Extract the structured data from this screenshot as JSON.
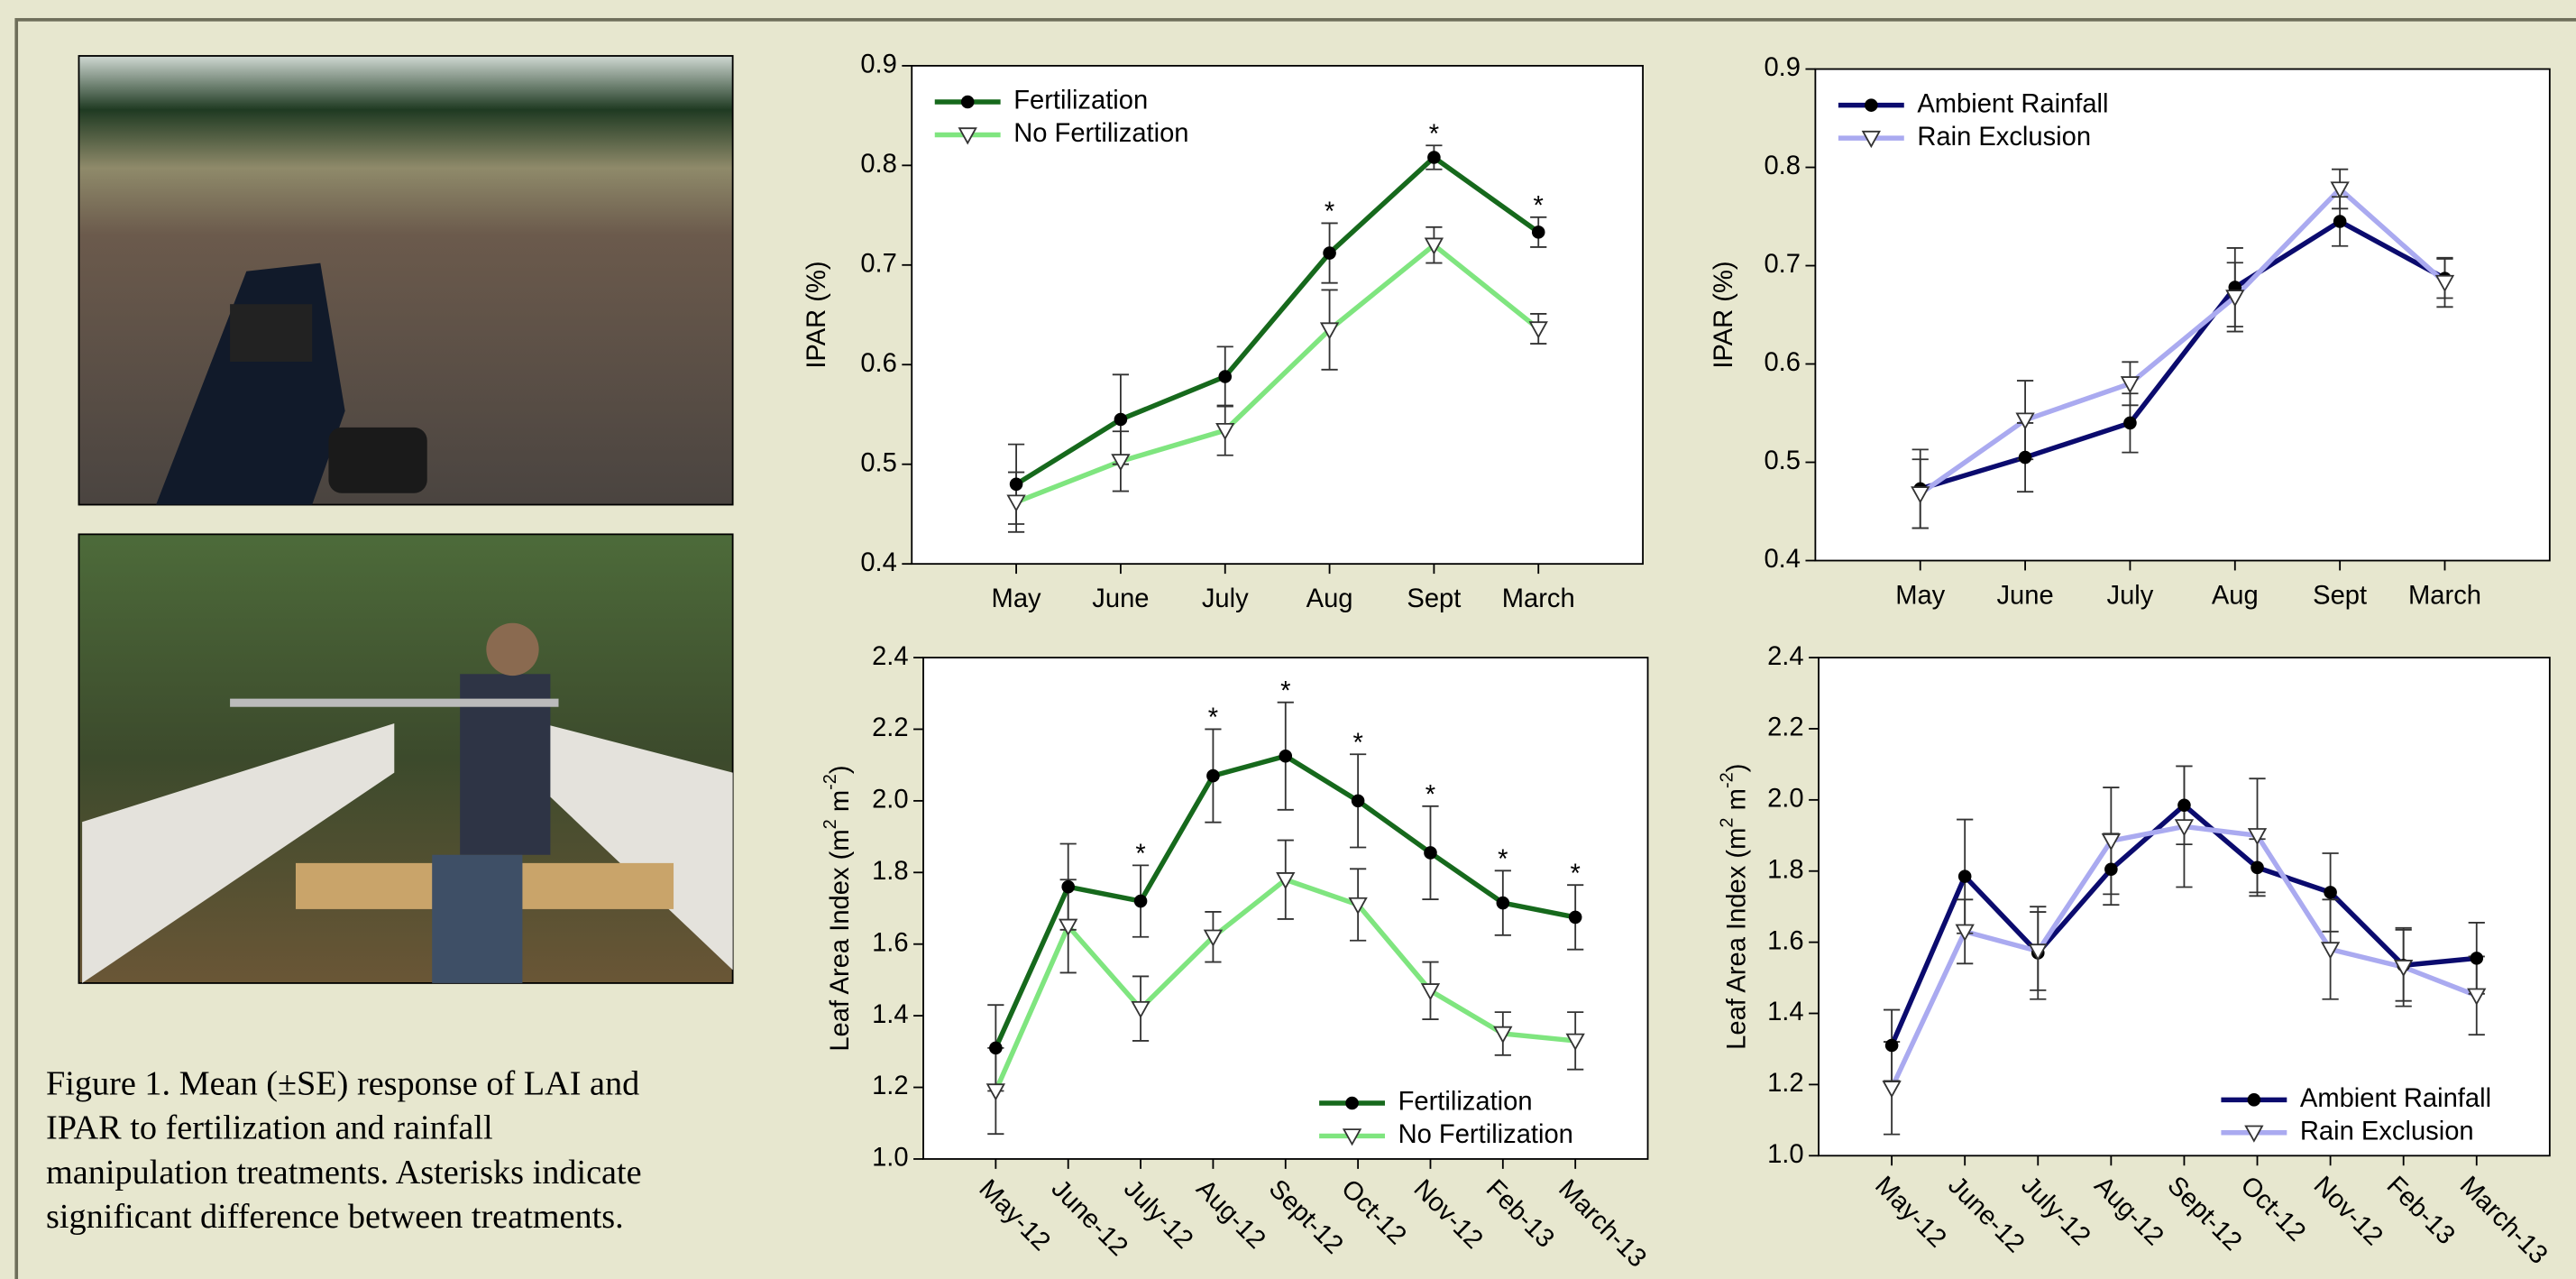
{
  "caption": [
    "Figure 1.  Mean (±SE) response of LAI and",
    "IPAR to fertilization and rainfall",
    "manipulation treatments.  Asterisks indicate",
    "significant difference between treatments."
  ],
  "chart_data": [
    {
      "type": "line",
      "ylabel": "IPAR (%)",
      "categories": [
        "May",
        "June",
        "July",
        "Aug",
        "Sept",
        "March"
      ],
      "ylim": [
        0.4,
        0.9
      ],
      "yticks": [
        0.4,
        0.5,
        0.6,
        0.7,
        0.8,
        0.9
      ],
      "legend": "upper left",
      "rotate_xlabels": false,
      "significance": [
        null,
        null,
        null,
        "*",
        "*",
        "*"
      ],
      "series": [
        {
          "name": "Fertilization",
          "color": "#16691c",
          "marker": "circle",
          "values": [
            0.48,
            0.545,
            0.588,
            0.712,
            0.808,
            0.733
          ],
          "errors": [
            0.04,
            0.045,
            0.03,
            0.03,
            0.012,
            0.015
          ]
        },
        {
          "name": "No Fertilization",
          "color": "#7fe57f",
          "marker": "triangle-down",
          "values": [
            0.462,
            0.503,
            0.534,
            0.635,
            0.72,
            0.636
          ],
          "errors": [
            0.03,
            0.03,
            0.025,
            0.04,
            0.018,
            0.015
          ]
        }
      ]
    },
    {
      "type": "line",
      "ylabel": "IPAR (%)",
      "categories": [
        "May",
        "June",
        "July",
        "Aug",
        "Sept",
        "March"
      ],
      "ylim": [
        0.4,
        0.9
      ],
      "yticks": [
        0.4,
        0.5,
        0.6,
        0.7,
        0.8,
        0.9
      ],
      "legend": "upper left",
      "rotate_xlabels": false,
      "series": [
        {
          "name": "Ambient Rainfall",
          "color": "#0b0b6e",
          "marker": "circle",
          "values": [
            0.473,
            0.505,
            0.54,
            0.678,
            0.745,
            0.687
          ],
          "errors": [
            0.04,
            0.035,
            0.03,
            0.04,
            0.025,
            0.02
          ]
        },
        {
          "name": "Rain Exclusion",
          "color": "#aaaaf0",
          "marker": "triangle-down",
          "values": [
            0.468,
            0.543,
            0.58,
            0.668,
            0.778,
            0.683
          ],
          "errors": [
            0.035,
            0.04,
            0.022,
            0.035,
            0.02,
            0.025
          ]
        }
      ]
    },
    {
      "type": "line",
      "ylabel": [
        "Leaf Area Index (m",
        "2",
        " m",
        "-2",
        ")"
      ],
      "categories": [
        "May-12",
        "June-12",
        "July-12",
        "Aug-12",
        "Sept-12",
        "Oct-12",
        "Nov-12",
        "Feb-13",
        "March-13"
      ],
      "ylim": [
        1,
        2.4
      ],
      "yticks": [
        {
          "value": 1,
          "label": "1.0"
        },
        1.2,
        1.4,
        1.6,
        1.8,
        {
          "value": 2,
          "label": "2.0"
        },
        2.2,
        2.4
      ],
      "legend": "lower right",
      "rotate_xlabels": true,
      "significance": [
        null,
        null,
        "*",
        "*",
        "*",
        "*",
        "*",
        "*",
        "*"
      ],
      "series": [
        {
          "name": "Fertilization",
          "color": "#16691c",
          "marker": "circle",
          "values": [
            1.31,
            1.76,
            1.72,
            2.07,
            2.125,
            2.0,
            1.855,
            1.715,
            1.675
          ],
          "errors": [
            0.12,
            0.12,
            0.1,
            0.13,
            0.15,
            0.13,
            0.13,
            0.09,
            0.09
          ]
        },
        {
          "name": "No Fertilization",
          "color": "#7fe57f",
          "marker": "triangle-down",
          "values": [
            1.19,
            1.65,
            1.42,
            1.62,
            1.78,
            1.71,
            1.47,
            1.35,
            1.33
          ],
          "errors": [
            0.12,
            0.13,
            0.09,
            0.07,
            0.11,
            0.1,
            0.08,
            0.06,
            0.08
          ]
        }
      ]
    },
    {
      "type": "line",
      "ylabel": [
        "Leaf Area Index (m",
        "2",
        " m",
        "-2",
        ")"
      ],
      "categories": [
        "May-12",
        "June-12",
        "July-12",
        "Aug-12",
        "Sept-12",
        "Oct-12",
        "Nov-12",
        "Feb-13",
        "March-13"
      ],
      "ylim": [
        1,
        2.4
      ],
      "yticks": [
        {
          "value": 1,
          "label": "1.0"
        },
        1.2,
        1.4,
        1.6,
        1.8,
        {
          "value": 2,
          "label": "2.0"
        },
        2.2,
        2.4
      ],
      "legend": "lower right",
      "rotate_xlabels": true,
      "series": [
        {
          "name": "Ambient Rainfall",
          "color": "#0b0b6e",
          "marker": "circle",
          "values": [
            1.31,
            1.785,
            1.57,
            1.805,
            1.985,
            1.81,
            1.74,
            1.535,
            1.555
          ],
          "errors": [
            0.1,
            0.16,
            0.13,
            0.1,
            0.11,
            0.08,
            0.11,
            0.1,
            0.1
          ]
        },
        {
          "name": "Rain Exclusion",
          "color": "#aaaaf0",
          "marker": "triangle-down",
          "values": [
            1.19,
            1.63,
            1.575,
            1.885,
            1.925,
            1.9,
            1.58,
            1.53,
            1.45
          ],
          "errors": [
            0.13,
            0.09,
            0.11,
            0.15,
            0.17,
            0.16,
            0.14,
            0.11,
            0.11
          ]
        }
      ]
    }
  ]
}
